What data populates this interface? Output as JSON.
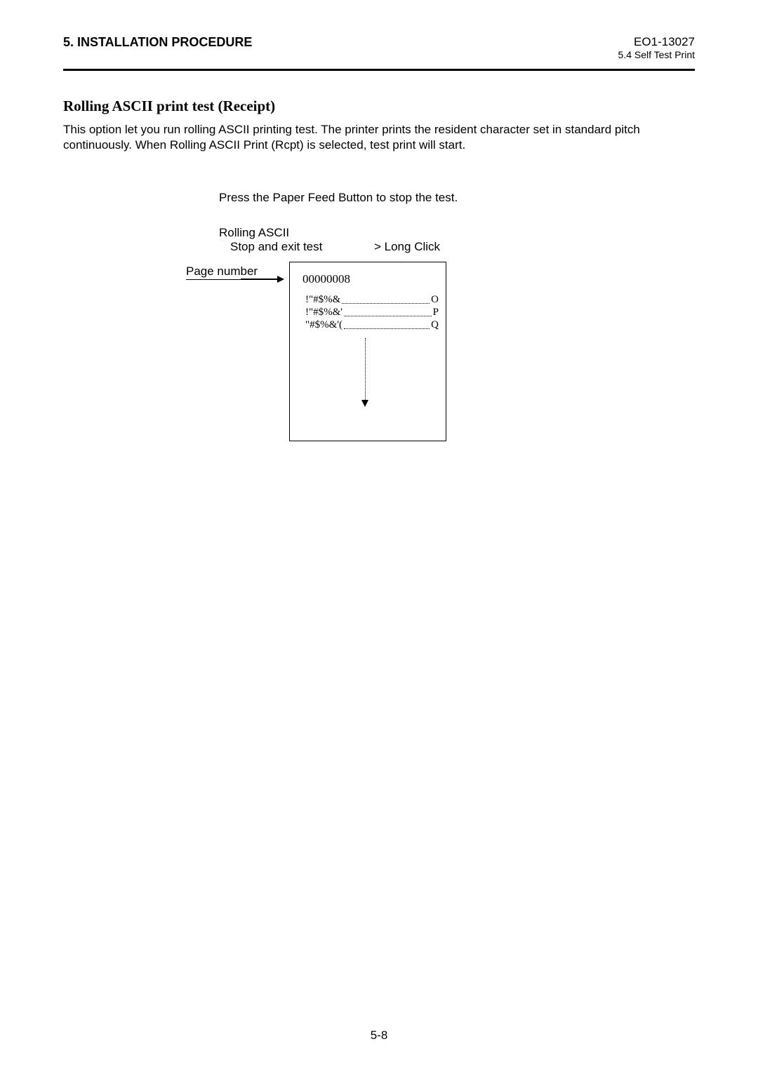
{
  "header": {
    "chapter": "5. INSTALLATION PROCEDURE",
    "doc_code": "EO1-13027",
    "doc_section": "5.4 Self Test Print"
  },
  "section_title": "Rolling ASCII print test (Receipt)",
  "body_text": "This option let you run rolling ASCII printing test. The printer prints the resident character set in standard pitch continuously. When Rolling ASCII Print (Rcpt) is selected, test print will start.",
  "instruction": {
    "line1": "Press the Paper Feed Button to stop the test.",
    "menu_title": "Rolling ASCII",
    "stop_label": "Stop and exit test",
    "action": "> Long Click"
  },
  "diagram": {
    "label": "Page number",
    "page_num_value": "00000008",
    "rows": [
      {
        "left": "!\"#$%&",
        "right": "O"
      },
      {
        "left": "!\"#$%&'",
        "right": "P"
      },
      {
        "left": "\"#$%&'(",
        "right": "Q"
      }
    ]
  },
  "footer_page": "5-8",
  "colors": {
    "background": "#ffffff",
    "text": "#000000",
    "rule": "#000000"
  }
}
